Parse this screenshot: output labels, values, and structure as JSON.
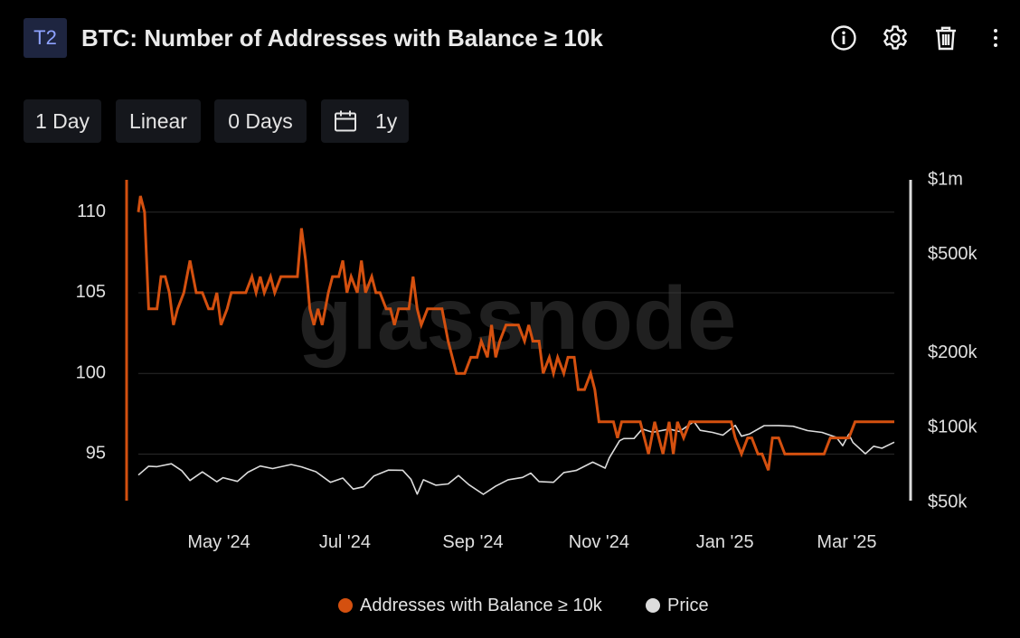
{
  "header": {
    "badge": "T2",
    "title": "BTC: Number of Addresses with Balance ≥ 10k",
    "icons": [
      "info-icon",
      "gear-icon",
      "trash-icon",
      "more-vertical-icon"
    ]
  },
  "toolbar": {
    "resolution": "1 Day",
    "scale": "Linear",
    "smoothing": "0 Days",
    "range_icon": "calendar-icon",
    "range": "1y"
  },
  "watermark": "glassnode",
  "colors": {
    "series_addresses": "#d4500f",
    "series_price": "#dcdcdc",
    "grid": "#2a2a2a",
    "axis_text": "#e0e0e0",
    "background": "#000000"
  },
  "chart_data": {
    "type": "line",
    "title": "BTC: Number of Addresses with Balance ≥ 10k",
    "x_range": [
      "2024-03-23",
      "2025-03-24"
    ],
    "x_ticks": [
      "May '24",
      "Jul '24",
      "Sep '24",
      "Nov '24",
      "Jan '25",
      "Mar '25"
    ],
    "y_left": {
      "ticks": [
        95,
        100,
        105,
        110
      ],
      "range": [
        92,
        112
      ],
      "scale": "linear"
    },
    "y_right": {
      "ticks": [
        "$50k",
        "$100k",
        "$200k",
        "$500k",
        "$1m"
      ],
      "range": [
        50000,
        1000000
      ],
      "scale": "log"
    },
    "grid": true,
    "legend_position": "bottom",
    "series": [
      {
        "name": "Addresses with Balance ≥ 10k",
        "axis": "left",
        "points": [
          [
            "2024-03-23",
            110
          ],
          [
            "2024-03-24",
            111
          ],
          [
            "2024-03-26",
            110
          ],
          [
            "2024-03-28",
            104
          ],
          [
            "2024-04-01",
            104
          ],
          [
            "2024-04-03",
            106
          ],
          [
            "2024-04-05",
            106
          ],
          [
            "2024-04-07",
            105
          ],
          [
            "2024-04-09",
            103
          ],
          [
            "2024-04-11",
            104
          ],
          [
            "2024-04-14",
            105
          ],
          [
            "2024-04-17",
            107
          ],
          [
            "2024-04-20",
            105
          ],
          [
            "2024-04-23",
            105
          ],
          [
            "2024-04-26",
            104
          ],
          [
            "2024-04-28",
            104
          ],
          [
            "2024-04-30",
            105
          ],
          [
            "2024-05-02",
            103
          ],
          [
            "2024-05-05",
            104
          ],
          [
            "2024-05-07",
            105
          ],
          [
            "2024-05-10",
            105
          ],
          [
            "2024-05-14",
            105
          ],
          [
            "2024-05-17",
            106
          ],
          [
            "2024-05-19",
            105
          ],
          [
            "2024-05-21",
            106
          ],
          [
            "2024-05-23",
            105
          ],
          [
            "2024-05-26",
            106
          ],
          [
            "2024-05-28",
            105
          ],
          [
            "2024-05-31",
            106
          ],
          [
            "2024-06-02",
            106
          ],
          [
            "2024-06-05",
            106
          ],
          [
            "2024-06-08",
            106
          ],
          [
            "2024-06-10",
            109
          ],
          [
            "2024-06-12",
            107
          ],
          [
            "2024-06-14",
            104
          ],
          [
            "2024-06-16",
            103
          ],
          [
            "2024-06-18",
            104
          ],
          [
            "2024-06-20",
            103
          ],
          [
            "2024-06-23",
            105
          ],
          [
            "2024-06-25",
            106
          ],
          [
            "2024-06-28",
            106
          ],
          [
            "2024-06-30",
            107
          ],
          [
            "2024-07-02",
            105
          ],
          [
            "2024-07-04",
            106
          ],
          [
            "2024-07-07",
            105
          ],
          [
            "2024-07-09",
            107
          ],
          [
            "2024-07-11",
            105
          ],
          [
            "2024-07-14",
            106
          ],
          [
            "2024-07-16",
            105
          ],
          [
            "2024-07-18",
            105
          ],
          [
            "2024-07-21",
            104
          ],
          [
            "2024-07-23",
            104
          ],
          [
            "2024-07-25",
            103
          ],
          [
            "2024-07-27",
            104
          ],
          [
            "2024-07-29",
            104
          ],
          [
            "2024-08-01",
            104
          ],
          [
            "2024-08-03",
            106
          ],
          [
            "2024-08-05",
            104
          ],
          [
            "2024-08-07",
            103
          ],
          [
            "2024-08-10",
            104
          ],
          [
            "2024-08-12",
            104
          ],
          [
            "2024-08-15",
            104
          ],
          [
            "2024-08-17",
            104
          ],
          [
            "2024-08-20",
            102
          ],
          [
            "2024-08-22",
            101
          ],
          [
            "2024-08-24",
            100
          ],
          [
            "2024-08-28",
            100
          ],
          [
            "2024-08-31",
            101
          ],
          [
            "2024-09-03",
            101
          ],
          [
            "2024-09-05",
            102
          ],
          [
            "2024-09-08",
            101
          ],
          [
            "2024-09-10",
            103
          ],
          [
            "2024-09-12",
            101
          ],
          [
            "2024-09-14",
            102
          ],
          [
            "2024-09-17",
            103
          ],
          [
            "2024-09-20",
            103
          ],
          [
            "2024-09-23",
            103
          ],
          [
            "2024-09-26",
            102
          ],
          [
            "2024-09-28",
            103
          ],
          [
            "2024-09-30",
            102
          ],
          [
            "2024-10-03",
            102
          ],
          [
            "2024-10-05",
            100
          ],
          [
            "2024-10-08",
            101
          ],
          [
            "2024-10-10",
            100
          ],
          [
            "2024-10-12",
            101
          ],
          [
            "2024-10-15",
            100
          ],
          [
            "2024-10-17",
            101
          ],
          [
            "2024-10-20",
            101
          ],
          [
            "2024-10-22",
            99
          ],
          [
            "2024-10-25",
            99
          ],
          [
            "2024-10-28",
            100
          ],
          [
            "2024-10-30",
            99
          ],
          [
            "2024-11-01",
            97
          ],
          [
            "2024-11-05",
            97
          ],
          [
            "2024-11-08",
            97
          ],
          [
            "2024-11-10",
            96
          ],
          [
            "2024-11-12",
            97
          ],
          [
            "2024-11-15",
            97
          ],
          [
            "2024-11-18",
            97
          ],
          [
            "2024-11-21",
            97
          ],
          [
            "2024-11-23",
            96
          ],
          [
            "2024-11-25",
            95
          ],
          [
            "2024-11-28",
            97
          ],
          [
            "2024-11-30",
            96
          ],
          [
            "2024-12-02",
            95
          ],
          [
            "2024-12-05",
            97
          ],
          [
            "2024-12-07",
            95
          ],
          [
            "2024-12-09",
            97
          ],
          [
            "2024-12-12",
            96
          ],
          [
            "2024-12-15",
            97
          ],
          [
            "2024-12-18",
            97
          ],
          [
            "2024-12-21",
            97
          ],
          [
            "2024-12-24",
            97
          ],
          [
            "2024-12-27",
            97
          ],
          [
            "2024-12-30",
            97
          ],
          [
            "2025-01-02",
            97
          ],
          [
            "2025-01-04",
            97
          ],
          [
            "2025-01-06",
            96
          ],
          [
            "2025-01-09",
            95
          ],
          [
            "2025-01-12",
            96
          ],
          [
            "2025-01-14",
            96
          ],
          [
            "2025-01-17",
            95
          ],
          [
            "2025-01-19",
            95
          ],
          [
            "2025-01-22",
            94
          ],
          [
            "2025-01-24",
            96
          ],
          [
            "2025-01-27",
            96
          ],
          [
            "2025-01-30",
            95
          ],
          [
            "2025-02-03",
            95
          ],
          [
            "2025-02-06",
            95
          ],
          [
            "2025-02-09",
            95
          ],
          [
            "2025-02-12",
            95
          ],
          [
            "2025-02-15",
            95
          ],
          [
            "2025-02-18",
            95
          ],
          [
            "2025-02-21",
            96
          ],
          [
            "2025-02-24",
            96
          ],
          [
            "2025-02-27",
            96
          ],
          [
            "2025-03-02",
            96
          ],
          [
            "2025-03-05",
            97
          ],
          [
            "2025-03-10",
            97
          ],
          [
            "2025-03-15",
            97
          ],
          [
            "2025-03-20",
            97
          ],
          [
            "2025-03-24",
            97
          ]
        ]
      },
      {
        "name": "Price",
        "axis": "right",
        "points": [
          [
            "2024-03-23",
            64500
          ],
          [
            "2024-03-28",
            70000
          ],
          [
            "2024-04-01",
            69700
          ],
          [
            "2024-04-08",
            71600
          ],
          [
            "2024-04-13",
            67200
          ],
          [
            "2024-04-17",
            61300
          ],
          [
            "2024-04-23",
            66400
          ],
          [
            "2024-04-30",
            60600
          ],
          [
            "2024-05-03",
            62900
          ],
          [
            "2024-05-10",
            60800
          ],
          [
            "2024-05-15",
            66200
          ],
          [
            "2024-05-21",
            70100
          ],
          [
            "2024-05-27",
            68500
          ],
          [
            "2024-06-05",
            71100
          ],
          [
            "2024-06-10",
            69600
          ],
          [
            "2024-06-17",
            66500
          ],
          [
            "2024-06-24",
            60300
          ],
          [
            "2024-06-30",
            62700
          ],
          [
            "2024-07-05",
            56600
          ],
          [
            "2024-07-10",
            57800
          ],
          [
            "2024-07-15",
            63900
          ],
          [
            "2024-07-22",
            67500
          ],
          [
            "2024-07-29",
            67400
          ],
          [
            "2024-08-02",
            62000
          ],
          [
            "2024-08-05",
            54000
          ],
          [
            "2024-08-08",
            61700
          ],
          [
            "2024-08-14",
            58700
          ],
          [
            "2024-08-20",
            59400
          ],
          [
            "2024-08-25",
            64200
          ],
          [
            "2024-08-30",
            59000
          ],
          [
            "2024-09-06",
            53900
          ],
          [
            "2024-09-12",
            58200
          ],
          [
            "2024-09-18",
            61700
          ],
          [
            "2024-09-25",
            63100
          ],
          [
            "2024-09-29",
            65600
          ],
          [
            "2024-10-03",
            60700
          ],
          [
            "2024-10-10",
            60300
          ],
          [
            "2024-10-15",
            66000
          ],
          [
            "2024-10-21",
            67300
          ],
          [
            "2024-10-29",
            72700
          ],
          [
            "2024-11-04",
            68800
          ],
          [
            "2024-11-06",
            75600
          ],
          [
            "2024-11-11",
            88700
          ],
          [
            "2024-11-13",
            90500
          ],
          [
            "2024-11-18",
            90600
          ],
          [
            "2024-11-22",
            98900
          ],
          [
            "2024-11-27",
            95900
          ],
          [
            "2024-12-05",
            98800
          ],
          [
            "2024-12-10",
            96600
          ],
          [
            "2024-12-17",
            106000
          ],
          [
            "2024-12-20",
            97700
          ],
          [
            "2024-12-26",
            95800
          ],
          [
            "2024-12-31",
            93400
          ],
          [
            "2025-01-06",
            102300
          ],
          [
            "2025-01-09",
            92500
          ],
          [
            "2025-01-13",
            94500
          ],
          [
            "2025-01-20",
            102000
          ],
          [
            "2025-01-27",
            102100
          ],
          [
            "2025-02-03",
            101400
          ],
          [
            "2025-02-10",
            97400
          ],
          [
            "2025-02-17",
            95800
          ],
          [
            "2025-02-24",
            91500
          ],
          [
            "2025-02-27",
            84700
          ],
          [
            "2025-03-02",
            94200
          ],
          [
            "2025-03-04",
            87200
          ],
          [
            "2025-03-10",
            78600
          ],
          [
            "2025-03-14",
            84300
          ],
          [
            "2025-03-18",
            82700
          ],
          [
            "2025-03-24",
            87500
          ]
        ]
      }
    ]
  }
}
